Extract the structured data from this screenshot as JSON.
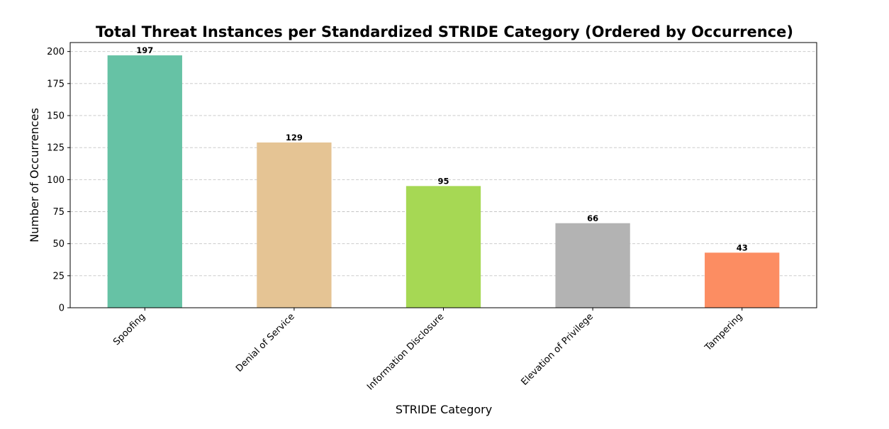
{
  "chart_data": {
    "type": "bar",
    "title": "Total Threat Instances per Standardized STRIDE Category (Ordered by Occurrence)",
    "xlabel": "STRIDE Category",
    "ylabel": "Number of Occurrences",
    "categories": [
      "Spoofing",
      "Denial of Service",
      "Information Disclosure",
      "Elevation of Privilege",
      "Tampering"
    ],
    "values": [
      197,
      129,
      95,
      66,
      43
    ],
    "colors": [
      "#66c2a5",
      "#e5c494",
      "#a6d854",
      "#b3b3b3",
      "#fc8d62"
    ],
    "ylim": [
      0,
      207
    ],
    "yticks": [
      0,
      25,
      50,
      75,
      100,
      125,
      150,
      175,
      200
    ],
    "grid": "y-dashed",
    "legend": "none",
    "data_labels": true
  }
}
